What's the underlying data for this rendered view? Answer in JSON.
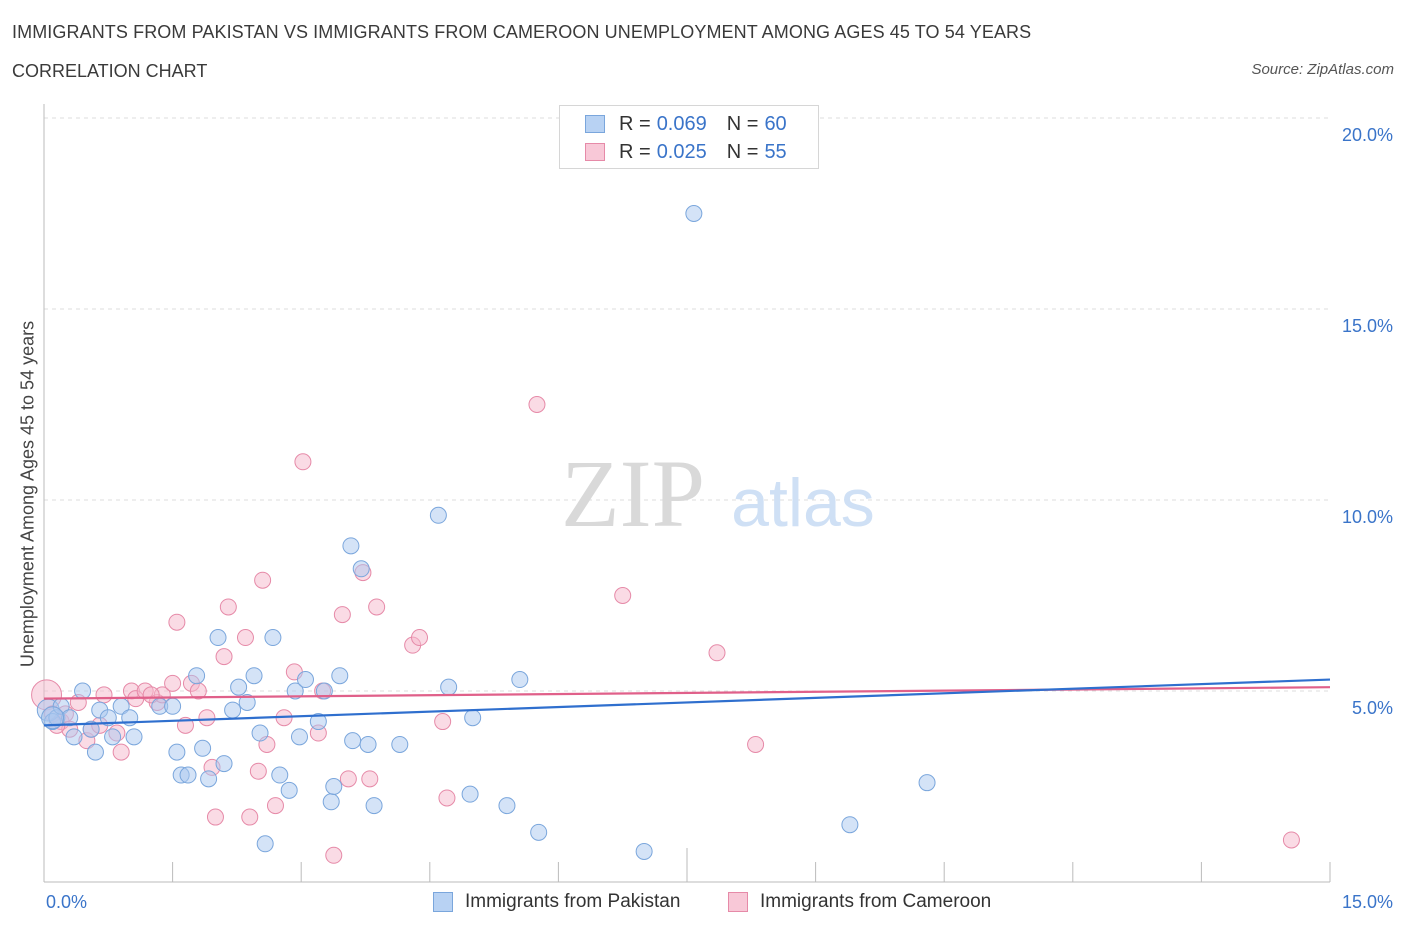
{
  "header": {
    "title": "IMMIGRANTS FROM PAKISTAN VS IMMIGRANTS FROM CAMEROON UNEMPLOYMENT AMONG AGES 45 TO 54 YEARS",
    "subtitle": "CORRELATION CHART",
    "source": "Source: ZipAtlas.com"
  },
  "watermark": {
    "zip": "ZIP",
    "atlas": "atlas"
  },
  "legend": {
    "r_label": "R = ",
    "n_label": "N = ",
    "series": [
      {
        "name": "Immigrants from Pakistan",
        "r": "0.069",
        "n": "60"
      },
      {
        "name": "Immigrants from Cameroon",
        "r": "0.025",
        "n": "55"
      }
    ]
  },
  "colors": {
    "blue_fill": "#aac8f0",
    "blue_stroke": "#7aa6dc",
    "blue_line": "#2f6fce",
    "pink_fill": "#f5b8cb",
    "pink_stroke": "#e68aa8",
    "pink_line": "#e0608a",
    "axis_text": "#3a74c9"
  },
  "chart_data": {
    "type": "scatter",
    "title": "IMMIGRANTS FROM PAKISTAN VS IMMIGRANTS FROM CAMEROON UNEMPLOYMENT AMONG AGES 45 TO 54 YEARS",
    "xlabel": "",
    "ylabel": "Unemployment Among Ages 45 to 54 years",
    "xlim": [
      0,
      15
    ],
    "ylim": [
      0,
      20
    ],
    "x_tick_labels": [
      "0.0%",
      "15.0%"
    ],
    "y_tick_labels": [
      "5.0%",
      "10.0%",
      "15.0%",
      "20.0%"
    ],
    "y_ticks": [
      5,
      10,
      15,
      20
    ],
    "grid": true,
    "legend_position": "top-center",
    "series": [
      {
        "name": "Immigrants from Pakistan",
        "r": 0.069,
        "n": 60,
        "trend": {
          "x": [
            0,
            15
          ],
          "y": [
            4.1,
            5.3
          ]
        },
        "points": [
          [
            0.05,
            4.5
          ],
          [
            0.1,
            4.2
          ],
          [
            0.15,
            4.3
          ],
          [
            0.2,
            4.6
          ],
          [
            0.3,
            4.3
          ],
          [
            0.35,
            3.8
          ],
          [
            0.45,
            5.0
          ],
          [
            0.55,
            4.0
          ],
          [
            0.6,
            3.4
          ],
          [
            0.65,
            4.5
          ],
          [
            0.75,
            4.3
          ],
          [
            0.8,
            3.8
          ],
          [
            0.9,
            4.6
          ],
          [
            1.0,
            4.3
          ],
          [
            1.05,
            3.8
          ],
          [
            1.35,
            4.6
          ],
          [
            1.5,
            4.6
          ],
          [
            1.55,
            3.4
          ],
          [
            1.6,
            2.8
          ],
          [
            1.68,
            2.8
          ],
          [
            1.78,
            5.4
          ],
          [
            1.85,
            3.5
          ],
          [
            1.92,
            2.7
          ],
          [
            2.03,
            6.4
          ],
          [
            2.1,
            3.1
          ],
          [
            2.2,
            4.5
          ],
          [
            2.27,
            5.1
          ],
          [
            2.37,
            4.7
          ],
          [
            2.45,
            5.4
          ],
          [
            2.52,
            3.9
          ],
          [
            2.58,
            1.0
          ],
          [
            2.67,
            6.4
          ],
          [
            2.75,
            2.8
          ],
          [
            2.86,
            2.4
          ],
          [
            2.93,
            5.0
          ],
          [
            2.98,
            3.8
          ],
          [
            3.05,
            5.3
          ],
          [
            3.2,
            4.2
          ],
          [
            3.27,
            5.0
          ],
          [
            3.35,
            2.1
          ],
          [
            3.38,
            2.5
          ],
          [
            3.45,
            5.4
          ],
          [
            3.58,
            8.8
          ],
          [
            3.6,
            3.7
          ],
          [
            3.7,
            8.2
          ],
          [
            3.78,
            3.6
          ],
          [
            3.85,
            2.0
          ],
          [
            4.15,
            3.6
          ],
          [
            4.6,
            9.6
          ],
          [
            4.72,
            5.1
          ],
          [
            4.97,
            2.3
          ],
          [
            5.0,
            4.3
          ],
          [
            5.4,
            2.0
          ],
          [
            5.55,
            5.3
          ],
          [
            5.77,
            1.3
          ],
          [
            7.0,
            0.8
          ],
          [
            7.58,
            17.5
          ],
          [
            9.4,
            1.5
          ],
          [
            10.3,
            2.6
          ],
          [
            0.1,
            4.3
          ]
        ]
      },
      {
        "name": "Immigrants from Cameroon",
        "r": 0.025,
        "n": 55,
        "trend": {
          "x": [
            0,
            15
          ],
          "y": [
            4.8,
            5.1
          ]
        },
        "points": [
          [
            0.03,
            4.9
          ],
          [
            0.1,
            4.4
          ],
          [
            0.2,
            4.2
          ],
          [
            0.25,
            4.4
          ],
          [
            0.3,
            4.0
          ],
          [
            0.4,
            4.7
          ],
          [
            0.5,
            3.7
          ],
          [
            0.55,
            4.0
          ],
          [
            0.65,
            4.1
          ],
          [
            0.7,
            4.9
          ],
          [
            0.85,
            3.9
          ],
          [
            0.9,
            3.4
          ],
          [
            1.02,
            5.0
          ],
          [
            1.07,
            4.8
          ],
          [
            1.18,
            5.0
          ],
          [
            1.32,
            4.7
          ],
          [
            1.38,
            4.9
          ],
          [
            1.5,
            5.2
          ],
          [
            1.55,
            6.8
          ],
          [
            1.65,
            4.1
          ],
          [
            1.72,
            5.2
          ],
          [
            1.8,
            5.0
          ],
          [
            1.9,
            4.3
          ],
          [
            1.96,
            3.0
          ],
          [
            2.0,
            1.7
          ],
          [
            2.1,
            5.9
          ],
          [
            2.15,
            7.2
          ],
          [
            2.35,
            6.4
          ],
          [
            2.4,
            1.7
          ],
          [
            2.5,
            2.9
          ],
          [
            2.55,
            7.9
          ],
          [
            2.6,
            3.6
          ],
          [
            2.7,
            2.0
          ],
          [
            2.8,
            4.3
          ],
          [
            2.92,
            5.5
          ],
          [
            3.02,
            11.0
          ],
          [
            3.2,
            3.9
          ],
          [
            3.25,
            5.0
          ],
          [
            3.38,
            0.7
          ],
          [
            3.48,
            7.0
          ],
          [
            3.55,
            2.7
          ],
          [
            3.72,
            8.1
          ],
          [
            3.8,
            2.7
          ],
          [
            3.88,
            7.2
          ],
          [
            4.3,
            6.2
          ],
          [
            4.38,
            6.4
          ],
          [
            4.65,
            4.2
          ],
          [
            4.7,
            2.2
          ],
          [
            5.75,
            12.5
          ],
          [
            6.75,
            7.5
          ],
          [
            7.85,
            6.0
          ],
          [
            8.3,
            3.6
          ],
          [
            14.55,
            1.1
          ],
          [
            0.15,
            4.1
          ],
          [
            1.25,
            4.9
          ]
        ]
      }
    ]
  }
}
